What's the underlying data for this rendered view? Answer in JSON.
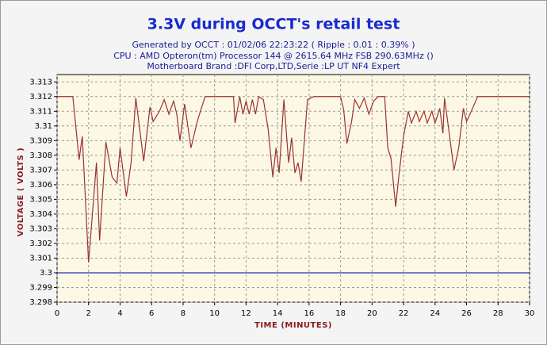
{
  "chart_data": {
    "type": "line",
    "title": "3.3V during OCCT's retail test",
    "subtitle": [
      "Generated by OCCT : 01/02/06 22:23:22 ( Ripple : 0.01 : 0.39% )",
      "CPU : AMD Opteron(tm) Processor 144    @ 2615.64 MHz FSB 290.63MHz ()",
      "Motherboard Brand :DFI Corp,LTD,Serie :LP UT NF4 Expert"
    ],
    "xlabel": "TIME (MINUTES)",
    "ylabel": "VOLTAGE ( VOLTS )",
    "xlim": [
      0,
      30
    ],
    "xticks": [
      0,
      2,
      4,
      6,
      8,
      10,
      12,
      14,
      16,
      18,
      20,
      22,
      24,
      26,
      28,
      30
    ],
    "ylim": [
      3.298,
      3.3135
    ],
    "yticks": [
      3.298,
      3.299,
      3.3,
      3.301,
      3.302,
      3.303,
      3.304,
      3.305,
      3.306,
      3.307,
      3.308,
      3.309,
      3.31,
      3.311,
      3.312,
      3.313
    ],
    "grid": true,
    "series": [
      {
        "color": "#993333",
        "x": [
          0,
          1.0,
          1.4,
          1.6,
          2.0,
          2.5,
          2.7,
          3.1,
          3.5,
          3.8,
          4.0,
          4.4,
          4.7,
          5.0,
          5.5,
          5.9,
          6.1,
          6.5,
          6.8,
          7.1,
          7.4,
          7.6,
          7.8,
          8.1,
          8.5,
          8.9,
          9.1,
          9.4,
          11.2,
          11.3,
          11.6,
          11.8,
          12.0,
          12.2,
          12.4,
          12.6,
          12.8,
          13.1,
          13.4,
          13.7,
          13.9,
          14.1,
          14.4,
          14.7,
          14.9,
          15.1,
          15.3,
          15.5,
          15.9,
          16.3,
          18.0,
          18.2,
          18.4,
          18.7,
          18.9,
          19.2,
          19.5,
          19.8,
          20.1,
          20.4,
          20.8,
          21.0,
          21.2,
          21.5,
          21.7,
          22.0,
          22.3,
          22.5,
          22.8,
          23.0,
          23.3,
          23.5,
          23.8,
          24.0,
          24.3,
          24.5,
          24.6,
          24.9,
          25.2,
          25.5,
          25.8,
          26.0,
          26.3,
          26.7,
          30
        ],
        "values": [
          3.312,
          3.312,
          3.3077,
          3.3093,
          3.3007,
          3.3075,
          3.3022,
          3.3089,
          3.3065,
          3.3061,
          3.3085,
          3.3052,
          3.3075,
          3.3119,
          3.3076,
          3.3113,
          3.3103,
          3.311,
          3.3118,
          3.3108,
          3.3117,
          3.3108,
          3.309,
          3.3115,
          3.3085,
          3.3103,
          3.311,
          3.312,
          3.312,
          3.3102,
          3.312,
          3.3108,
          3.3117,
          3.3108,
          3.3118,
          3.3108,
          3.312,
          3.3118,
          3.3098,
          3.3065,
          3.3085,
          3.3068,
          3.3118,
          3.3075,
          3.3092,
          3.3068,
          3.3075,
          3.3062,
          3.3118,
          3.312,
          3.312,
          3.3111,
          3.3088,
          3.3103,
          3.3118,
          3.3112,
          3.3119,
          3.3108,
          3.3117,
          3.312,
          3.312,
          3.3085,
          3.3078,
          3.3045,
          3.3066,
          3.3093,
          3.311,
          3.3102,
          3.311,
          3.3103,
          3.311,
          3.3102,
          3.311,
          3.3102,
          3.3112,
          3.3095,
          3.3119,
          3.3095,
          3.307,
          3.3085,
          3.3112,
          3.3103,
          3.311,
          3.312,
          3.312
        ]
      },
      {
        "color": "#2233bb",
        "x": [
          0,
          30
        ],
        "values": [
          3.3,
          3.3
        ]
      }
    ]
  }
}
